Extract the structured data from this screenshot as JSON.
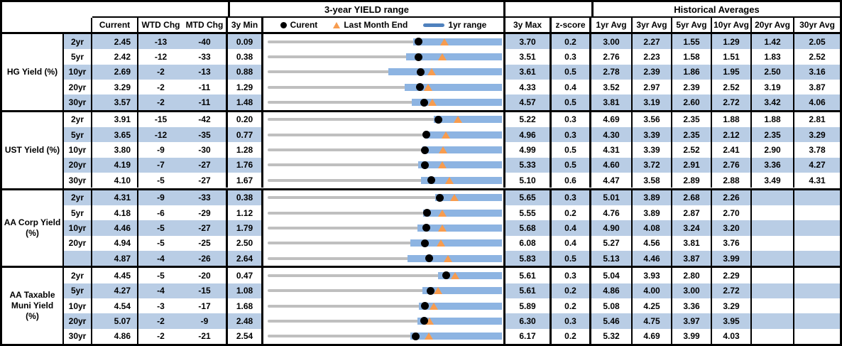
{
  "colors": {
    "stripe": "#B9CDE5",
    "bar_blue": "#8DB4E2",
    "legend_bar_blue": "#4F81BD",
    "track_gray": "#BFBFBF",
    "marker_orange": "#F79C4F",
    "marker_black": "#000000",
    "border_black": "#000000"
  },
  "header": {
    "range_title": "3-year YIELD range",
    "historical_title": "Historical Averages",
    "columns": {
      "current": "Current",
      "wtd": "WTD Chg",
      "mtd": "MTD Chg",
      "y3_min": "3y Min",
      "y3_max": "3y Max",
      "z": "z-score",
      "avgs": [
        "1yr Avg",
        "3yr Avg",
        "5yr Avg",
        "10yr Avg",
        "20yr Avg",
        "30yr Avg"
      ]
    },
    "legend": {
      "current": "Curent",
      "last_month_end": "Last Month End",
      "range": "1yr range"
    }
  },
  "chart_data": {
    "type": "table",
    "title": "3-year YIELD range",
    "subtitle": "Historical Averages",
    "legend_entries": [
      "Curent (black dot)",
      "Last Month End (orange triangle)",
      "1yr range (blue bar)"
    ],
    "column_headers": [
      "",
      "",
      "Current",
      "WTD Chg",
      "MTD Chg",
      "3y Min",
      "3-year YIELD range",
      "3y Max",
      "z-score",
      "1yr Avg",
      "3yr Avg",
      "5yr Avg",
      "10yr Avg",
      "20yr Avg",
      "30yr Avg"
    ],
    "groups": [
      {
        "label_lines": [
          "HG Yield (%)"
        ],
        "rows": [
          {
            "tenor": "2yr",
            "current": "2.45",
            "wtd_chg": "-13",
            "mtd_chg": "-40",
            "y3_min": "0.09",
            "y3_max": "3.70",
            "z_score": "0.2",
            "avgs": [
              "3.00",
              "2.27",
              "1.55",
              "1.29",
              "1.42",
              "2.05"
            ],
            "striped": true,
            "range_plot": {
              "min": 0.09,
              "max": 3.7,
              "yr1_min": 2.36,
              "yr1_max": 3.7,
              "current": 2.45,
              "last_month_end": 2.85
            }
          },
          {
            "tenor": "5yr",
            "current": "2.42",
            "wtd_chg": "-12",
            "mtd_chg": "-33",
            "y3_min": "0.38",
            "y3_max": "3.51",
            "z_score": "0.3",
            "avgs": [
              "2.76",
              "2.23",
              "1.58",
              "1.51",
              "1.83",
              "2.52"
            ],
            "striped": false,
            "range_plot": {
              "min": 0.38,
              "max": 3.51,
              "yr1_min": 2.25,
              "yr1_max": 3.51,
              "current": 2.42,
              "last_month_end": 2.75
            }
          },
          {
            "tenor": "10yr",
            "current": "2.69",
            "wtd_chg": "-2",
            "mtd_chg": "-13",
            "y3_min": "0.88",
            "y3_max": "3.61",
            "z_score": "0.5",
            "avgs": [
              "2.78",
              "2.39",
              "1.86",
              "1.95",
              "2.50",
              "3.16"
            ],
            "striped": true,
            "range_plot": {
              "min": 0.88,
              "max": 3.61,
              "yr1_min": 2.3,
              "yr1_max": 3.61,
              "current": 2.69,
              "last_month_end": 2.82
            }
          },
          {
            "tenor": "20yr",
            "current": "3.29",
            "wtd_chg": "-2",
            "mtd_chg": "-11",
            "y3_min": "1.29",
            "y3_max": "4.33",
            "z_score": "0.4",
            "avgs": [
              "3.52",
              "2.97",
              "2.39",
              "2.52",
              "3.19",
              "3.87"
            ],
            "striped": false,
            "range_plot": {
              "min": 1.29,
              "max": 4.33,
              "yr1_min": 3.09,
              "yr1_max": 4.33,
              "current": 3.29,
              "last_month_end": 3.4
            }
          },
          {
            "tenor": "30yr",
            "current": "3.57",
            "wtd_chg": "-2",
            "mtd_chg": "-11",
            "y3_min": "1.48",
            "y3_max": "4.57",
            "z_score": "0.5",
            "avgs": [
              "3.81",
              "3.19",
              "2.60",
              "2.72",
              "3.42",
              "4.06"
            ],
            "striped": true,
            "range_plot": {
              "min": 1.48,
              "max": 4.57,
              "yr1_min": 3.41,
              "yr1_max": 4.57,
              "current": 3.57,
              "last_month_end": 3.68
            }
          }
        ]
      },
      {
        "label_lines": [
          "UST Yield (%)"
        ],
        "rows": [
          {
            "tenor": "2yr",
            "current": "3.91",
            "wtd_chg": "-15",
            "mtd_chg": "-42",
            "y3_min": "0.20",
            "y3_max": "5.22",
            "z_score": "0.3",
            "avgs": [
              "4.69",
              "3.56",
              "2.35",
              "1.88",
              "1.88",
              "2.81"
            ],
            "striped": false,
            "range_plot": {
              "min": 0.2,
              "max": 5.22,
              "yr1_min": 3.81,
              "yr1_max": 5.22,
              "current": 3.91,
              "last_month_end": 4.33
            }
          },
          {
            "tenor": "5yr",
            "current": "3.65",
            "wtd_chg": "-12",
            "mtd_chg": "-35",
            "y3_min": "0.77",
            "y3_max": "4.96",
            "z_score": "0.3",
            "avgs": [
              "4.30",
              "3.39",
              "2.35",
              "2.12",
              "2.35",
              "3.29"
            ],
            "striped": true,
            "range_plot": {
              "min": 0.77,
              "max": 4.96,
              "yr1_min": 3.62,
              "yr1_max": 4.96,
              "current": 3.65,
              "last_month_end": 4.0
            }
          },
          {
            "tenor": "10yr",
            "current": "3.80",
            "wtd_chg": "-9",
            "mtd_chg": "-30",
            "y3_min": "1.28",
            "y3_max": "4.99",
            "z_score": "0.5",
            "avgs": [
              "4.31",
              "3.39",
              "2.52",
              "2.41",
              "2.90",
              "3.78"
            ],
            "striped": false,
            "range_plot": {
              "min": 1.28,
              "max": 4.99,
              "yr1_min": 3.77,
              "yr1_max": 4.99,
              "current": 3.8,
              "last_month_end": 4.1
            }
          },
          {
            "tenor": "20yr",
            "current": "4.19",
            "wtd_chg": "-7",
            "mtd_chg": "-27",
            "y3_min": "1.76",
            "y3_max": "5.33",
            "z_score": "0.5",
            "avgs": [
              "4.60",
              "3.72",
              "2.91",
              "2.76",
              "3.36",
              "4.27"
            ],
            "striped": true,
            "range_plot": {
              "min": 1.76,
              "max": 5.33,
              "yr1_min": 4.09,
              "yr1_max": 5.33,
              "current": 4.19,
              "last_month_end": 4.46
            }
          },
          {
            "tenor": "30yr",
            "current": "4.10",
            "wtd_chg": "-5",
            "mtd_chg": "-27",
            "y3_min": "1.67",
            "y3_max": "5.10",
            "z_score": "0.6",
            "avgs": [
              "4.47",
              "3.58",
              "2.89",
              "2.88",
              "3.49",
              "4.31"
            ],
            "striped": false,
            "range_plot": {
              "min": 1.67,
              "max": 5.1,
              "yr1_min": 3.95,
              "yr1_max": 5.1,
              "current": 4.1,
              "last_month_end": 4.37
            }
          }
        ]
      },
      {
        "label_lines": [
          "AA Corp Yield",
          "(%)"
        ],
        "rows": [
          {
            "tenor": "2yr",
            "current": "4.31",
            "wtd_chg": "-9",
            "mtd_chg": "-33",
            "y3_min": "0.38",
            "y3_max": "5.65",
            "z_score": "0.3",
            "avgs": [
              "5.01",
              "3.89",
              "2.68",
              "2.26",
              "",
              ""
            ],
            "striped": true,
            "range_plot": {
              "min": 0.38,
              "max": 5.65,
              "yr1_min": 4.2,
              "yr1_max": 5.65,
              "current": 4.31,
              "last_month_end": 4.64
            }
          },
          {
            "tenor": "5yr",
            "current": "4.18",
            "wtd_chg": "-6",
            "mtd_chg": "-29",
            "y3_min": "1.12",
            "y3_max": "5.55",
            "z_score": "0.2",
            "avgs": [
              "4.76",
              "3.89",
              "2.87",
              "2.70",
              "",
              ""
            ],
            "striped": false,
            "range_plot": {
              "min": 1.12,
              "max": 5.55,
              "yr1_min": 4.1,
              "yr1_max": 5.55,
              "current": 4.18,
              "last_month_end": 4.47
            }
          },
          {
            "tenor": "10yr",
            "current": "4.46",
            "wtd_chg": "-5",
            "mtd_chg": "-27",
            "y3_min": "1.79",
            "y3_max": "5.68",
            "z_score": "0.4",
            "avgs": [
              "4.90",
              "4.08",
              "3.24",
              "3.20",
              "",
              ""
            ],
            "striped": true,
            "range_plot": {
              "min": 1.79,
              "max": 5.68,
              "yr1_min": 4.31,
              "yr1_max": 5.68,
              "current": 4.46,
              "last_month_end": 4.73
            }
          },
          {
            "tenor": "20yr",
            "current": "4.94",
            "wtd_chg": "-5",
            "mtd_chg": "-25",
            "y3_min": "2.50",
            "y3_max": "6.08",
            "z_score": "0.4",
            "avgs": [
              "5.27",
              "4.56",
              "3.81",
              "3.76",
              "",
              ""
            ],
            "striped": false,
            "range_plot": {
              "min": 2.5,
              "max": 6.08,
              "yr1_min": 4.71,
              "yr1_max": 6.08,
              "current": 4.94,
              "last_month_end": 5.19
            }
          },
          {
            "tenor": "",
            "current": "4.87",
            "wtd_chg": "-4",
            "mtd_chg": "-26",
            "y3_min": "2.64",
            "y3_max": "5.83",
            "z_score": "0.5",
            "avgs": [
              "5.13",
              "4.46",
              "3.87",
              "3.99",
              "",
              ""
            ],
            "striped": true,
            "range_plot": {
              "min": 2.64,
              "max": 5.83,
              "yr1_min": 4.57,
              "yr1_max": 5.83,
              "current": 4.87,
              "last_month_end": 5.13
            }
          }
        ]
      },
      {
        "label_lines": [
          "AA Taxable",
          "Muni Yield",
          "(%)"
        ],
        "rows": [
          {
            "tenor": "2yr",
            "current": "4.45",
            "wtd_chg": "-5",
            "mtd_chg": "-20",
            "y3_min": "0.47",
            "y3_max": "5.61",
            "z_score": "0.3",
            "avgs": [
              "5.04",
              "3.93",
              "2.80",
              "2.29",
              "",
              ""
            ],
            "striped": false,
            "range_plot": {
              "min": 0.47,
              "max": 5.61,
              "yr1_min": 4.26,
              "yr1_max": 5.61,
              "current": 4.45,
              "last_month_end": 4.65
            }
          },
          {
            "tenor": "5yr",
            "current": "4.27",
            "wtd_chg": "-4",
            "mtd_chg": "-15",
            "y3_min": "1.08",
            "y3_max": "5.61",
            "z_score": "0.2",
            "avgs": [
              "4.86",
              "4.00",
              "3.00",
              "2.72",
              "",
              ""
            ],
            "striped": true,
            "range_plot": {
              "min": 1.08,
              "max": 5.61,
              "yr1_min": 4.12,
              "yr1_max": 5.61,
              "current": 4.27,
              "last_month_end": 4.42
            }
          },
          {
            "tenor": "10yr",
            "current": "4.54",
            "wtd_chg": "-3",
            "mtd_chg": "-17",
            "y3_min": "1.68",
            "y3_max": "5.89",
            "z_score": "0.2",
            "avgs": [
              "5.08",
              "4.25",
              "3.36",
              "3.29",
              "",
              ""
            ],
            "striped": false,
            "range_plot": {
              "min": 1.68,
              "max": 5.89,
              "yr1_min": 4.43,
              "yr1_max": 5.89,
              "current": 4.54,
              "last_month_end": 4.71
            }
          },
          {
            "tenor": "20yr",
            "current": "5.07",
            "wtd_chg": "-2",
            "mtd_chg": "-9",
            "y3_min": "2.48",
            "y3_max": "6.30",
            "z_score": "0.3",
            "avgs": [
              "5.46",
              "4.75",
              "3.97",
              "3.95",
              "",
              ""
            ],
            "striped": true,
            "range_plot": {
              "min": 2.48,
              "max": 6.3,
              "yr1_min": 4.96,
              "yr1_max": 6.3,
              "current": 5.07,
              "last_month_end": 5.16
            }
          },
          {
            "tenor": "30yr",
            "current": "4.86",
            "wtd_chg": "-2",
            "mtd_chg": "-21",
            "y3_min": "2.54",
            "y3_max": "6.17",
            "z_score": "0.2",
            "avgs": [
              "5.32",
              "4.69",
              "3.99",
              "4.03",
              "",
              ""
            ],
            "striped": false,
            "range_plot": {
              "min": 2.54,
              "max": 6.17,
              "yr1_min": 4.78,
              "yr1_max": 6.17,
              "current": 4.86,
              "last_month_end": 5.07
            }
          }
        ]
      }
    ]
  }
}
